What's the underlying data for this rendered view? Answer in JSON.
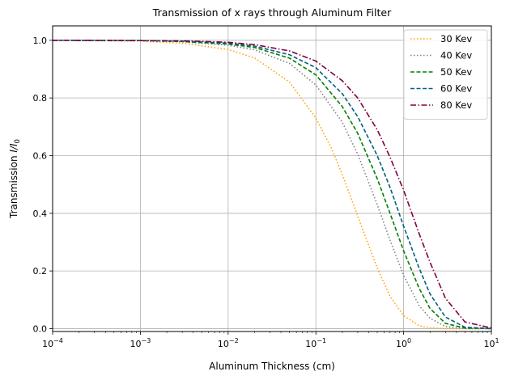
{
  "chart_data": {
    "type": "line",
    "title": "Transmission of x rays through Aluminum Filter",
    "xlabel": "Aluminum Thickness (cm)",
    "ylabel_prefix": "Transmission ",
    "ylabel_math": "I/I",
    "ylabel_sub": "0",
    "xscale": "log",
    "xlim": [
      0.0001,
      10
    ],
    "ylim": [
      -0.01,
      1.05
    ],
    "grid": true,
    "legend_position": "top-right",
    "xticks": [
      {
        "value": 0.0001,
        "base": "10",
        "exp": "−4"
      },
      {
        "value": 0.001,
        "base": "10",
        "exp": "−3"
      },
      {
        "value": 0.01,
        "base": "10",
        "exp": "−2"
      },
      {
        "value": 0.1,
        "base": "10",
        "exp": "−1"
      },
      {
        "value": 1,
        "base": "10",
        "exp": "0"
      },
      {
        "value": 10,
        "base": "10",
        "exp": "1"
      }
    ],
    "yticks": [
      {
        "value": 0.0,
        "label": "0.0"
      },
      {
        "value": 0.2,
        "label": "0.2"
      },
      {
        "value": 0.4,
        "label": "0.4"
      },
      {
        "value": 0.6,
        "label": "0.6"
      },
      {
        "value": 0.8,
        "label": "0.8"
      },
      {
        "value": 1.0,
        "label": "1.0"
      }
    ],
    "series": [
      {
        "name": "30 Kev",
        "color": "#ffa500",
        "dash": "1.5,2.5",
        "x": [
          0.0001,
          0.001,
          0.003,
          0.01,
          0.02,
          0.05,
          0.1,
          0.15,
          0.2,
          0.3,
          0.5,
          0.7,
          1,
          1.5,
          2,
          3,
          5,
          10
        ],
        "y": [
          1.0,
          0.997,
          0.99,
          0.968,
          0.939,
          0.855,
          0.73,
          0.626,
          0.535,
          0.39,
          0.21,
          0.112,
          0.045,
          0.01,
          0.003,
          0.0,
          0.0,
          0.0
        ]
      },
      {
        "name": "40 Kev",
        "color": "#808080",
        "dash": "1.5,2.5",
        "x": [
          0.0001,
          0.001,
          0.003,
          0.01,
          0.02,
          0.05,
          0.1,
          0.2,
          0.3,
          0.5,
          0.7,
          1,
          1.5,
          2,
          3,
          5,
          10
        ],
        "y": [
          1.0,
          0.999,
          0.995,
          0.983,
          0.967,
          0.92,
          0.845,
          0.716,
          0.605,
          0.43,
          0.307,
          0.185,
          0.08,
          0.036,
          0.007,
          0.0,
          0.0
        ]
      },
      {
        "name": "50 Kev",
        "color": "#008000",
        "dash": "5,2.5",
        "x": [
          0.0001,
          0.001,
          0.003,
          0.01,
          0.02,
          0.05,
          0.1,
          0.2,
          0.3,
          0.5,
          0.7,
          1,
          1.5,
          2,
          3,
          5,
          10
        ],
        "y": [
          1.0,
          0.999,
          0.996,
          0.987,
          0.975,
          0.938,
          0.88,
          0.77,
          0.677,
          0.52,
          0.4,
          0.27,
          0.14,
          0.07,
          0.018,
          0.002,
          0.0
        ]
      },
      {
        "name": "60 Kev",
        "color": "#005f7f",
        "dash": "5,2.5",
        "x": [
          0.0001,
          0.001,
          0.003,
          0.01,
          0.02,
          0.05,
          0.1,
          0.2,
          0.3,
          0.5,
          0.7,
          1,
          1.5,
          2,
          3,
          5,
          10
        ],
        "y": [
          1.0,
          0.999,
          0.997,
          0.99,
          0.98,
          0.95,
          0.905,
          0.815,
          0.735,
          0.6,
          0.49,
          0.355,
          0.21,
          0.12,
          0.04,
          0.005,
          0.0
        ]
      },
      {
        "name": "80 Kev",
        "color": "#7f0040",
        "dash": "7,2.5,1.5,2.5",
        "x": [
          0.0001,
          0.001,
          0.003,
          0.01,
          0.02,
          0.05,
          0.1,
          0.2,
          0.3,
          0.5,
          0.7,
          1,
          1.5,
          2,
          3,
          5,
          10
        ],
        "y": [
          1.0,
          0.999,
          0.998,
          0.993,
          0.985,
          0.963,
          0.928,
          0.86,
          0.8,
          0.69,
          0.595,
          0.48,
          0.33,
          0.23,
          0.105,
          0.023,
          0.002
        ]
      }
    ]
  }
}
